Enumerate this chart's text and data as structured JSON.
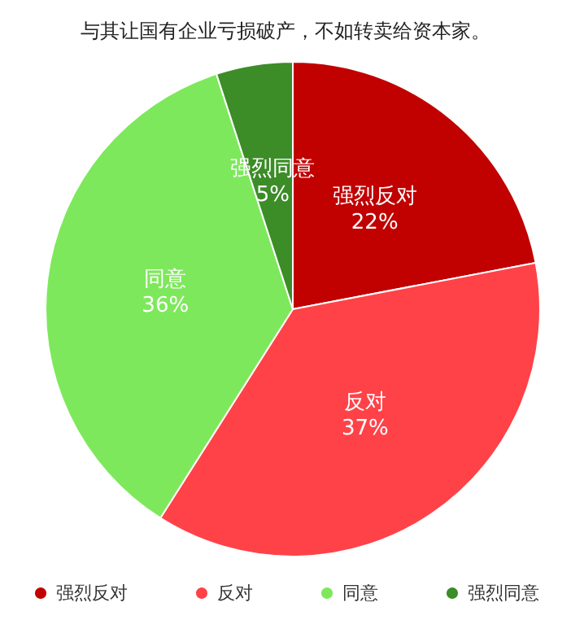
{
  "chart_data": {
    "type": "pie",
    "title": "与其让国有企业亏损破产，不如转卖给资本家。",
    "categories": [
      "强烈反对",
      "反对",
      "同意",
      "强烈同意"
    ],
    "values": [
      22,
      37,
      36,
      5
    ],
    "colors": [
      "#c10000",
      "#ff4248",
      "#7ee85c",
      "#3c8c28"
    ],
    "value_labels": [
      "22%",
      "37%",
      "36%",
      "5%"
    ],
    "legend": "bottom"
  }
}
